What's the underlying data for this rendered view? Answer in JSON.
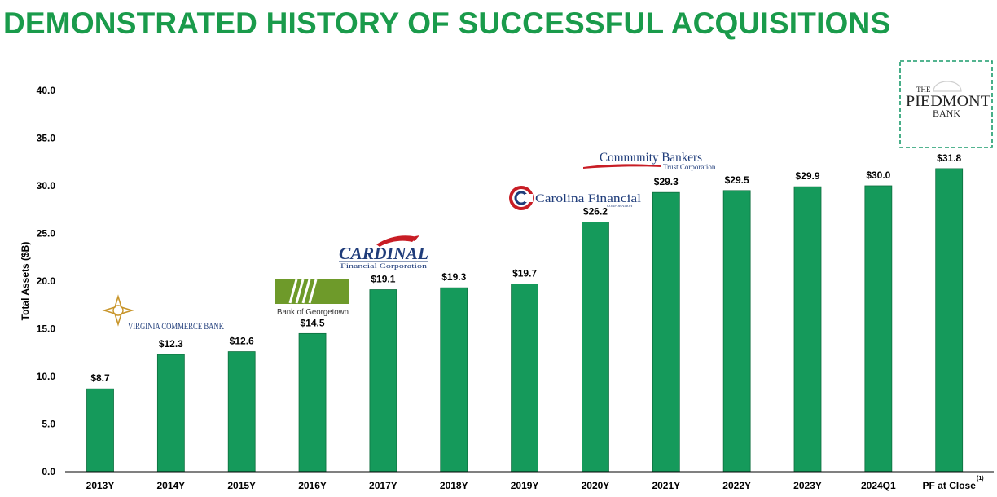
{
  "page": {
    "title": "DEMONSTRATED HISTORY OF SUCCESSFUL ACQUISITIONS"
  },
  "colors": {
    "title": "#1a9b4b",
    "bar": "#159a5b",
    "bar_edge": "#0d6e3e",
    "axis": "#000000",
    "piedmont_frame": "#1a9b6b",
    "cardinal_red": "#c81d25",
    "carolina_blue": "#1f3c7a",
    "bog_green": "#6e9a2a",
    "vcb_gold": "#c8952a"
  },
  "chart_data": {
    "type": "bar",
    "ylabel": "Total Assets ($B)",
    "ylim": [
      0,
      40
    ],
    "yticks": [
      "0.0",
      "5.0",
      "10.0",
      "15.0",
      "20.0",
      "25.0",
      "30.0",
      "35.0",
      "40.0"
    ],
    "categories": [
      "2013Y",
      "2014Y",
      "2015Y",
      "2016Y",
      "2017Y",
      "2018Y",
      "2019Y",
      "2020Y",
      "2021Y",
      "2022Y",
      "2023Y",
      "2024Q1",
      "PF at Close"
    ],
    "values": [
      8.7,
      12.3,
      12.6,
      14.5,
      19.1,
      19.3,
      19.7,
      26.2,
      29.3,
      29.5,
      29.9,
      30.0,
      31.8
    ],
    "data_labels": [
      "$8.7",
      "$12.3",
      "$12.6",
      "$14.5",
      "$19.1",
      "$19.3",
      "$19.7",
      "$26.2",
      "$29.3",
      "$29.5",
      "$29.9",
      "$30.0",
      "$31.8"
    ],
    "footnote_marker": "(1)",
    "grid": false,
    "legend": "none"
  },
  "logos": {
    "virginia_commerce": {
      "text": "VIRGINIA COMMERCE BANK",
      "icon": "compass-star-icon"
    },
    "bank_of_georgetown": {
      "text": "Bank of Georgetown",
      "icon": "stripes-icon"
    },
    "cardinal": {
      "name": "CARDINAL",
      "sub": "Financial Corporation",
      "icon": "cardinal-bird-icon"
    },
    "carolina": {
      "name": "Carolina Financial",
      "sub": "CORPORATION",
      "icon": "c-ring-icon"
    },
    "community_bankers": {
      "name": "Community Bankers",
      "sub": "Trust Corporation",
      "icon": "swoosh-icon"
    },
    "piedmont": {
      "line1": "THE",
      "line2": "PIEDMONT",
      "line3": "BANK",
      "icon": "dome-icon"
    }
  }
}
